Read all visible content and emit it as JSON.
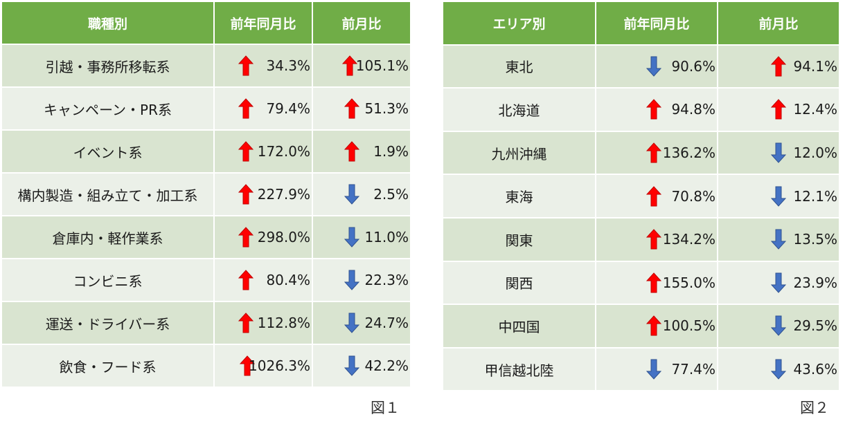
{
  "table1": {
    "headers": [
      "職種別",
      "前年同月比",
      "前月比"
    ],
    "rows": [
      {
        "label": "引越・事務所移転系",
        "yoy": {
          "value": "34.3%",
          "dir": "up"
        },
        "mom": {
          "value": "105.1%",
          "dir": "up"
        }
      },
      {
        "label": "キャンペーン・PR系",
        "yoy": {
          "value": "79.4%",
          "dir": "up"
        },
        "mom": {
          "value": "51.3%",
          "dir": "up"
        }
      },
      {
        "label": "イベント系",
        "yoy": {
          "value": "172.0%",
          "dir": "up"
        },
        "mom": {
          "value": "1.9%",
          "dir": "up"
        }
      },
      {
        "label": "構内製造・組み立て・加工系",
        "yoy": {
          "value": "227.9%",
          "dir": "up"
        },
        "mom": {
          "value": "2.5%",
          "dir": "down"
        }
      },
      {
        "label": "倉庫内・軽作業系",
        "yoy": {
          "value": "298.0%",
          "dir": "up"
        },
        "mom": {
          "value": "11.0%",
          "dir": "down"
        }
      },
      {
        "label": "コンビニ系",
        "yoy": {
          "value": "80.4%",
          "dir": "up"
        },
        "mom": {
          "value": "22.3%",
          "dir": "down"
        }
      },
      {
        "label": "運送・ドライバー系",
        "yoy": {
          "value": "112.8%",
          "dir": "up"
        },
        "mom": {
          "value": "24.7%",
          "dir": "down"
        }
      },
      {
        "label": "飲食・フード系",
        "yoy": {
          "value": "1026.3%",
          "dir": "up"
        },
        "mom": {
          "value": "42.2%",
          "dir": "down"
        }
      }
    ],
    "caption": "図１"
  },
  "table2": {
    "headers": [
      "エリア別",
      "前年同月比",
      "前月比"
    ],
    "rows": [
      {
        "label": "東北",
        "yoy": {
          "value": "90.6%",
          "dir": "down"
        },
        "mom": {
          "value": "94.1%",
          "dir": "up"
        }
      },
      {
        "label": "北海道",
        "yoy": {
          "value": "94.8%",
          "dir": "up"
        },
        "mom": {
          "value": "12.4%",
          "dir": "up"
        }
      },
      {
        "label": "九州沖縄",
        "yoy": {
          "value": "136.2%",
          "dir": "up"
        },
        "mom": {
          "value": "12.0%",
          "dir": "down"
        }
      },
      {
        "label": "東海",
        "yoy": {
          "value": "70.8%",
          "dir": "up"
        },
        "mom": {
          "value": "12.1%",
          "dir": "down"
        }
      },
      {
        "label": "関東",
        "yoy": {
          "value": "134.2%",
          "dir": "up"
        },
        "mom": {
          "value": "13.5%",
          "dir": "down"
        }
      },
      {
        "label": "関西",
        "yoy": {
          "value": "155.0%",
          "dir": "up"
        },
        "mom": {
          "value": "23.9%",
          "dir": "down"
        }
      },
      {
        "label": "中四国",
        "yoy": {
          "value": "100.5%",
          "dir": "up"
        },
        "mom": {
          "value": "29.5%",
          "dir": "down"
        }
      },
      {
        "label": "甲信越北陸",
        "yoy": {
          "value": "77.4%",
          "dir": "down"
        },
        "mom": {
          "value": "43.6%",
          "dir": "down"
        }
      }
    ],
    "caption": "図２"
  },
  "colors": {
    "header_bg": "#70ad47",
    "row_odd": "#d9e4d0",
    "row_even": "#ebf0e8",
    "arrow_up": "#ff0000",
    "arrow_down": "#4472c4"
  },
  "icons": {
    "up": "arrow-up-icon",
    "down": "arrow-down-icon"
  }
}
